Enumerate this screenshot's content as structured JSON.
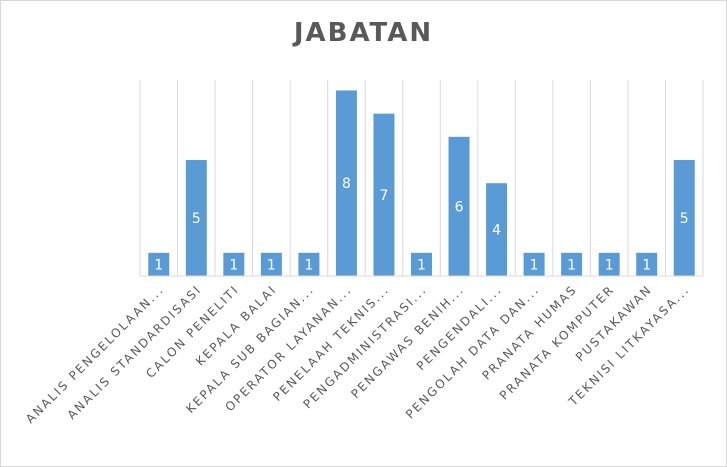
{
  "chart_data": {
    "type": "bar",
    "title": "JABATAN",
    "categories": [
      "ANALIS PENGELOLAAN...",
      "ANALIS STANDARDISASI",
      "CALON PENELITI",
      "KEPALA BALAI",
      "KEPALA SUB BAGIAN...",
      "OPERATOR LAYANAN...",
      "PENELAAH TEKNIS...",
      "PENGADMINISTRASI...",
      "PENGAWAS BENIH...",
      "PENGENDALI...",
      "PENGOLAH DATA DAN...",
      "PRANATA HUMAS",
      "PRANATA KOMPUTER",
      "PUSTAKAWAN",
      "TEKNISI LITKAYASA..."
    ],
    "values": [
      1,
      5,
      1,
      1,
      1,
      8,
      7,
      1,
      6,
      4,
      1,
      1,
      1,
      1,
      5
    ],
    "ylim": [
      0,
      8.45
    ],
    "grid": true,
    "bar_color": "#5b9bd5",
    "grid_color": "#d9d9d9",
    "text_color": "#595959"
  }
}
